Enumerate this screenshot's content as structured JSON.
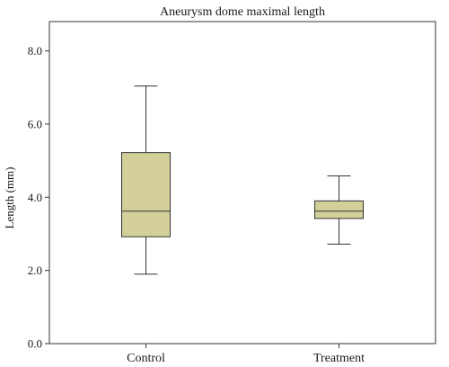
{
  "chart_data": {
    "type": "boxplot",
    "title": "Aneurysm dome maximal length",
    "xlabel": "",
    "ylabel": "Length (mm)",
    "ylim": [
      0,
      8.8
    ],
    "yticks": [
      {
        "value": 0,
        "label": "0.0"
      },
      {
        "value": 2,
        "label": "2.0"
      },
      {
        "value": 4,
        "label": "4.0"
      },
      {
        "value": 6,
        "label": "6.0"
      },
      {
        "value": 8,
        "label": "8.0"
      }
    ],
    "grid": false,
    "box_color": "#d2cf98",
    "line_color": "#333333",
    "categories": [
      "Control",
      "Treatment"
    ],
    "series": [
      {
        "category": "Control",
        "min": 1.9,
        "q1": 2.92,
        "median": 3.62,
        "q3": 5.22,
        "max": 7.04
      },
      {
        "category": "Treatment",
        "min": 2.72,
        "q1": 3.42,
        "median": 3.62,
        "q3": 3.9,
        "max": 4.58
      }
    ]
  }
}
